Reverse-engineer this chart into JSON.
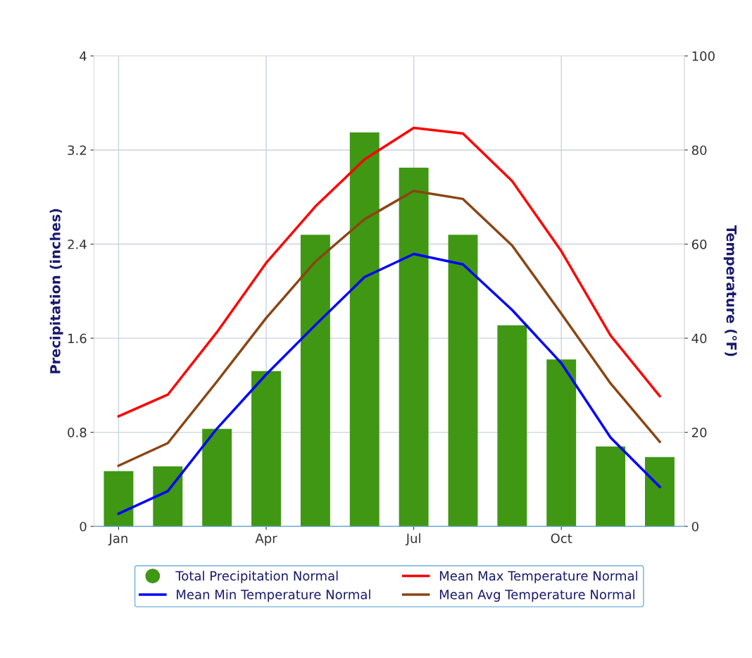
{
  "chart_data": {
    "type": "bar",
    "ylabel": "Precipitation (inches)",
    "y2label": "Temperature (°F)",
    "categories": [
      "Jan",
      null,
      null,
      "Apr",
      null,
      null,
      "Jul",
      null,
      null,
      "Oct",
      null,
      null
    ],
    "series": [
      {
        "name": "Total Precipitation Normal",
        "color": "#3f9714",
        "values": [
          0.47,
          0.51,
          0.83,
          1.32,
          2.48,
          3.35,
          3.05,
          2.48,
          1.71,
          1.42,
          0.68,
          0.59
        ]
      },
      {
        "name": "Mean Max Temperature Normal",
        "type": "line",
        "axis": "y2",
        "color": "#ff0000",
        "values": [
          23.4,
          28,
          41.3,
          56,
          68,
          78,
          84.7,
          83.5,
          73.4,
          58.5,
          40.6,
          27.7
        ]
      },
      {
        "name": "Mean Min Temperature Normal",
        "type": "line",
        "axis": "y2",
        "color": "#0000ff",
        "values": [
          2.7,
          7.5,
          20.8,
          32.3,
          42.8,
          53,
          57.9,
          55.7,
          46,
          34.7,
          18.9,
          8.4
        ]
      },
      {
        "name": "Mean Avg Temperature Normal",
        "type": "line",
        "axis": "y2",
        "color": "#8b4513",
        "values": [
          12.9,
          17.7,
          30.8,
          44.3,
          56.3,
          65.3,
          71.3,
          69.6,
          59.7,
          45.2,
          30.4,
          18
        ]
      }
    ],
    "ylim": [
      0,
      4
    ],
    "yticks": [
      0,
      0.8,
      1.6,
      2.4,
      3.2,
      4
    ],
    "y2lim": [
      0,
      100
    ],
    "y2ticks": [
      0,
      20,
      40,
      60,
      80,
      100
    ],
    "grid": true,
    "legend": "bottom",
    "marker": "none",
    "line_style": "solid"
  }
}
